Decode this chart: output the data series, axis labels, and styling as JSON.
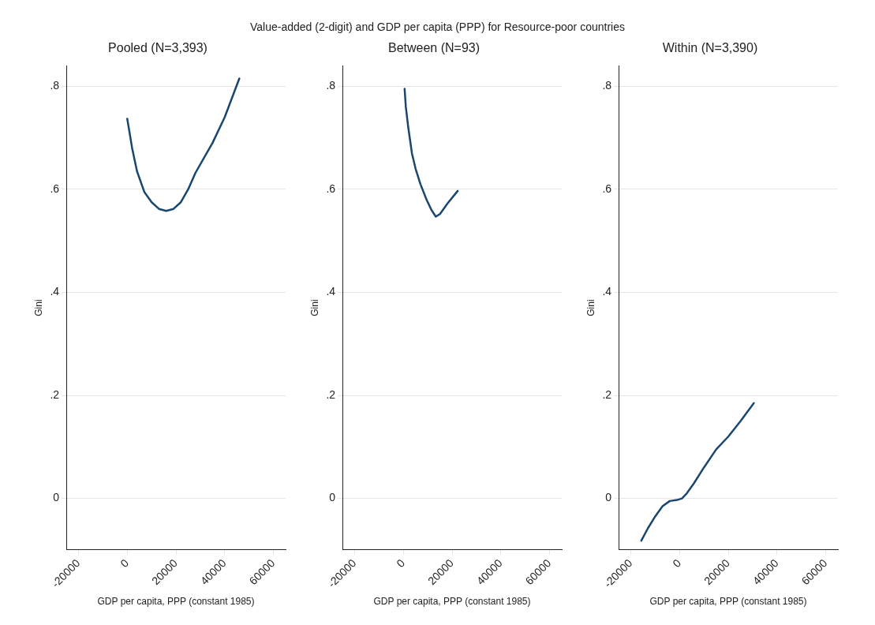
{
  "chart_data": [
    {
      "type": "other",
      "title": "Value-added (2-digit) and GDP per capita (PPP) for Resource-poor countries"
    },
    {
      "type": "line",
      "subtitle": "Pooled (N=3,393)",
      "xlabel": "GDP per capita, PPP (constant 1985)",
      "ylabel": "Gini",
      "xlim": [
        -25000,
        65000
      ],
      "xticks": [
        -20000,
        0,
        20000,
        40000,
        60000
      ],
      "ylim": [
        -0.1,
        0.84
      ],
      "yticks": [
        {
          "value": 0,
          "label": "0"
        },
        {
          "value": 0.2,
          "label": ".2"
        },
        {
          "value": 0.4,
          "label": ".4"
        },
        {
          "value": 0.6,
          "label": ".6"
        },
        {
          "value": 0.8,
          "label": ".8"
        }
      ],
      "grid": "y",
      "legend": false,
      "marker": "none",
      "line_style": "solid",
      "series": [
        {
          "color": "#1a476f",
          "x": [
            0,
            2000,
            4000,
            7000,
            10000,
            13000,
            16000,
            19000,
            22000,
            25000,
            28000,
            35000,
            40000,
            46000
          ],
          "values": [
            0.737,
            0.68,
            0.635,
            0.595,
            0.575,
            0.562,
            0.558,
            0.562,
            0.575,
            0.6,
            0.632,
            0.69,
            0.74,
            0.815
          ]
        }
      ]
    },
    {
      "type": "line",
      "subtitle": "Between (N=93)",
      "xlabel": "GDP per capita, PPP (constant 1985)",
      "ylabel": "Gini",
      "xlim": [
        -25000,
        65000
      ],
      "xticks": [
        -20000,
        0,
        20000,
        40000,
        60000
      ],
      "ylim": [
        -0.1,
        0.84
      ],
      "yticks": [
        {
          "value": 0,
          "label": "0"
        },
        {
          "value": 0.2,
          "label": ".2"
        },
        {
          "value": 0.4,
          "label": ".4"
        },
        {
          "value": 0.6,
          "label": ".6"
        },
        {
          "value": 0.8,
          "label": ".8"
        }
      ],
      "grid": "y",
      "legend": false,
      "marker": "none",
      "line_style": "solid",
      "series": [
        {
          "color": "#1a476f",
          "x": [
            500,
            1000,
            2000,
            3500,
            5000,
            7000,
            9500,
            11500,
            13300,
            15000,
            18000,
            22300
          ],
          "values": [
            0.795,
            0.76,
            0.72,
            0.67,
            0.64,
            0.61,
            0.58,
            0.56,
            0.547,
            0.552,
            0.572,
            0.597
          ]
        }
      ]
    },
    {
      "type": "line",
      "subtitle": "Within (N=3,390)",
      "xlabel": "GDP per capita, PPP (constant 1985)",
      "ylabel": "Gini",
      "xlim": [
        -25000,
        65000
      ],
      "xticks": [
        -20000,
        0,
        20000,
        40000,
        60000
      ],
      "ylim": [
        -0.1,
        0.84
      ],
      "yticks": [
        {
          "value": 0,
          "label": "0"
        },
        {
          "value": 0.2,
          "label": ".2"
        },
        {
          "value": 0.4,
          "label": ".4"
        },
        {
          "value": 0.6,
          "label": ".6"
        },
        {
          "value": 0.8,
          "label": ".8"
        }
      ],
      "grid": "y",
      "legend": false,
      "marker": "none",
      "line_style": "solid",
      "series": [
        {
          "color": "#1a476f",
          "x": [
            -15700,
            -13000,
            -10000,
            -7000,
            -4000,
            -1000,
            1000,
            3000,
            6000,
            10000,
            15000,
            20000,
            25000,
            30500
          ],
          "values": [
            -0.082,
            -0.058,
            -0.035,
            -0.015,
            -0.005,
            -0.003,
            0,
            0.01,
            0.03,
            0.06,
            0.095,
            0.12,
            0.15,
            0.185
          ]
        }
      ]
    }
  ]
}
